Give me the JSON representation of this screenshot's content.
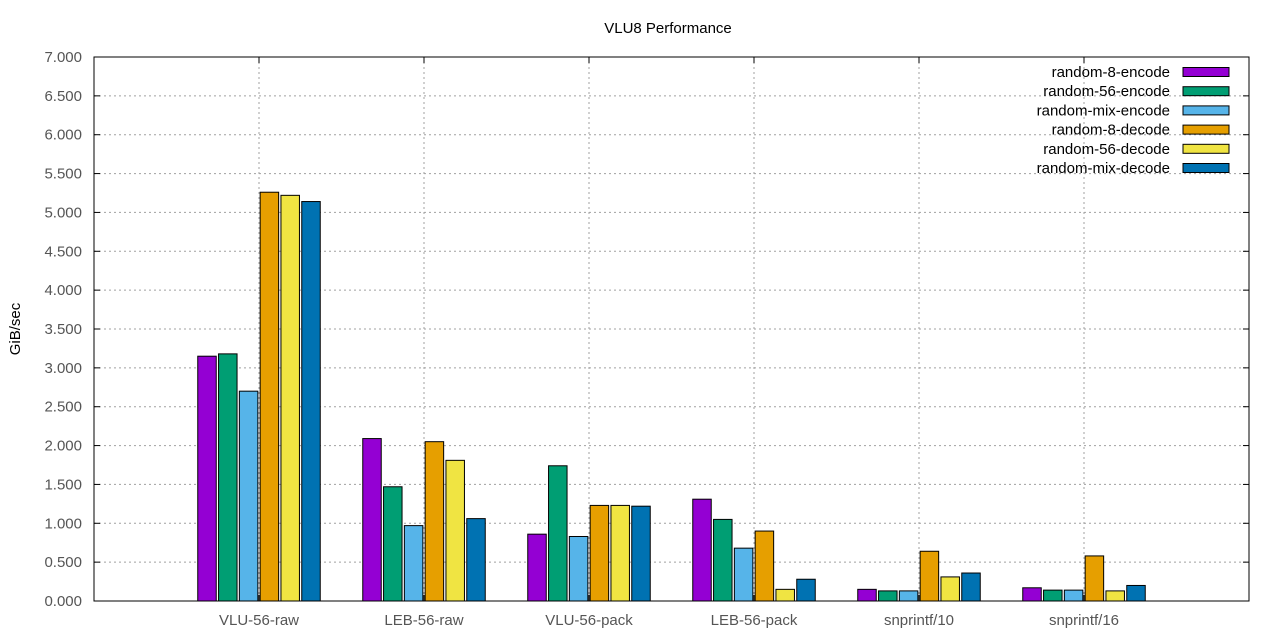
{
  "chart_data": {
    "type": "bar",
    "title": "VLU8 Performance",
    "xlabel": "",
    "ylabel": "GiB/sec",
    "ylim": [
      0,
      7.0
    ],
    "yticks": [
      "0.000",
      "0.500",
      "1.000",
      "1.500",
      "2.000",
      "2.500",
      "3.000",
      "3.500",
      "4.000",
      "4.500",
      "5.000",
      "5.500",
      "6.000",
      "6.500",
      "7.000"
    ],
    "grid": true,
    "legend_position": "top-right",
    "categories": [
      "VLU-56-raw",
      "LEB-56-raw",
      "VLU-56-pack",
      "LEB-56-pack",
      "snprintf/10",
      "snprintf/16"
    ],
    "series": [
      {
        "name": "random-8-encode",
        "color": "#9400d3",
        "values": [
          3.15,
          2.09,
          0.86,
          1.31,
          0.15,
          0.17
        ]
      },
      {
        "name": "random-56-encode",
        "color": "#009e73",
        "values": [
          3.18,
          1.47,
          1.74,
          1.05,
          0.13,
          0.14
        ]
      },
      {
        "name": "random-mix-encode",
        "color": "#56b4e9",
        "values": [
          2.7,
          0.97,
          0.83,
          0.68,
          0.13,
          0.14
        ]
      },
      {
        "name": "random-8-decode",
        "color": "#e69f00",
        "values": [
          5.26,
          2.05,
          1.23,
          0.9,
          0.64,
          0.58
        ]
      },
      {
        "name": "random-56-decode",
        "color": "#f0e442",
        "values": [
          5.22,
          1.81,
          1.23,
          0.15,
          0.31,
          0.13
        ]
      },
      {
        "name": "random-mix-decode",
        "color": "#0072b2",
        "values": [
          5.14,
          1.06,
          1.22,
          0.28,
          0.36,
          0.2
        ]
      }
    ]
  }
}
